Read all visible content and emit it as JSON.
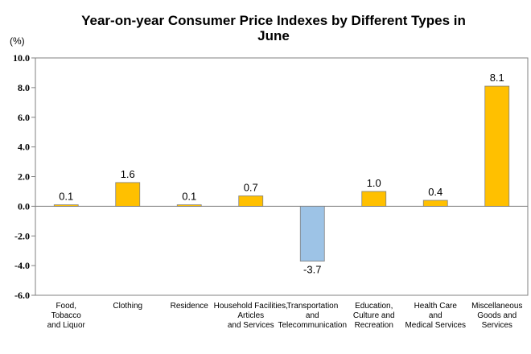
{
  "chart_data": {
    "type": "bar",
    "title_lines": [
      "Year-on-year Consumer Price Indexes by Different Types in",
      "June"
    ],
    "unit_label": "(%)",
    "ylim": [
      -6.0,
      10.0
    ],
    "yticks": [
      "10.0",
      "8.0",
      "6.0",
      "4.0",
      "2.0",
      "0.0",
      "-2.0",
      "-4.0",
      "-6.0"
    ],
    "categories": [
      [
        "Food,",
        "Tobacco",
        "and Liquor"
      ],
      [
        "Clothing"
      ],
      [
        "Residence"
      ],
      [
        "Household Facilities,",
        "Articles",
        "and Services"
      ],
      [
        "Transportation",
        "and",
        "Telecommunication"
      ],
      [
        "Education,",
        "Culture and",
        "Recreation"
      ],
      [
        "Health Care",
        "and",
        "Medical Services"
      ],
      [
        "Miscellaneous",
        "Goods and",
        "Services"
      ]
    ],
    "values": [
      0.1,
      1.6,
      0.1,
      0.7,
      -3.7,
      1.0,
      0.4,
      8.1
    ],
    "value_labels": [
      "0.1",
      "1.6",
      "0.1",
      "0.7",
      "-3.7",
      "1.0",
      "0.4",
      "8.1"
    ],
    "grid": false,
    "colors": {
      "positive": "#FFC000",
      "negative": "#9DC3E6",
      "stroke": "#7F7F7F",
      "axis": "#808080"
    }
  }
}
